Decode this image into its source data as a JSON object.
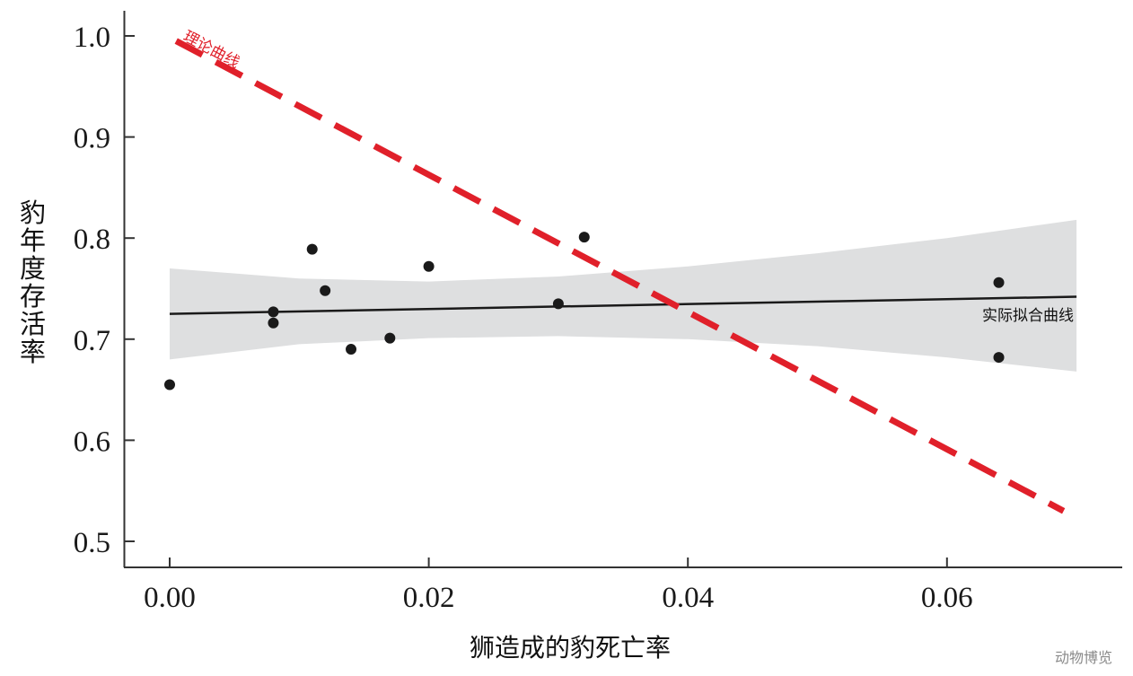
{
  "chart_data": {
    "type": "scatter",
    "title": "",
    "xlabel": "狮造成的豹死亡率",
    "ylabel": "豹年度存活率",
    "xlim": [
      -0.0017,
      0.0735
    ],
    "ylim": [
      0.474,
      1.024
    ],
    "grid": false,
    "x_ticks": [
      "0.00",
      "0.02",
      "0.04",
      "0.06"
    ],
    "y_ticks": [
      "0.5",
      "0.6",
      "0.7",
      "0.8",
      "0.9",
      "1.0"
    ],
    "points": {
      "x": [
        0.0,
        0.008,
        0.008,
        0.011,
        0.012,
        0.014,
        0.017,
        0.02,
        0.03,
        0.032,
        0.064,
        0.064
      ],
      "y": [
        0.655,
        0.727,
        0.716,
        0.789,
        0.748,
        0.69,
        0.701,
        0.772,
        0.735,
        0.801,
        0.756,
        0.682
      ]
    },
    "series": [
      {
        "name": "理论曲线",
        "type": "line",
        "style": "dashed",
        "color": "#e0202a",
        "x": [
          0.0005,
          0.069
        ],
        "y": [
          0.995,
          0.53
        ]
      },
      {
        "name": "实际拟合曲线",
        "type": "line",
        "style": "solid",
        "color": "#1a1a1a",
        "x": [
          0.0,
          0.07
        ],
        "y": [
          0.725,
          0.742
        ]
      },
      {
        "name": "confidence-band",
        "type": "area",
        "color": "#dedfe0",
        "x": [
          0.0,
          0.01,
          0.02,
          0.03,
          0.04,
          0.05,
          0.06,
          0.07
        ],
        "upper": [
          0.77,
          0.76,
          0.757,
          0.762,
          0.772,
          0.785,
          0.8,
          0.818
        ],
        "lower": [
          0.68,
          0.695,
          0.701,
          0.703,
          0.7,
          0.693,
          0.682,
          0.668
        ]
      }
    ],
    "annotations": [
      {
        "text": "理论曲线",
        "color": "#e0202a",
        "x": 0.001,
        "y": 1.0
      },
      {
        "text": "实际拟合曲线",
        "color": "#1a1a1a",
        "x": 0.061,
        "y": 0.725
      }
    ],
    "legend": null
  },
  "watermark": "动物博览",
  "colors": {
    "theory_line": "#e0202a",
    "fit_line": "#1a1a1a",
    "band": "#dedfe0",
    "points": "#1a1a1a",
    "axis": "#333333"
  }
}
